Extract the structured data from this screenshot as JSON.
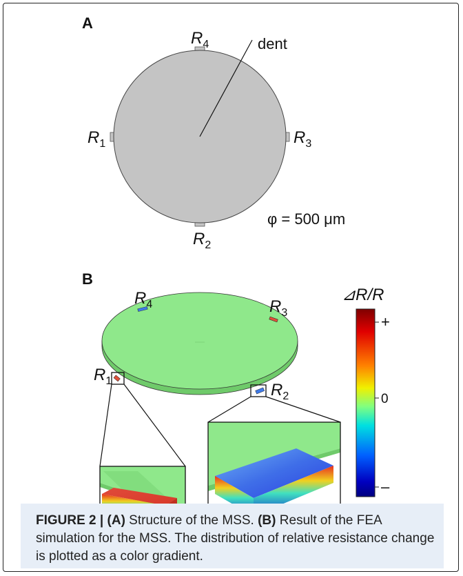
{
  "panels": {
    "a": {
      "letter": "A",
      "dent_label": "dent",
      "diameter": "φ = 500 μm",
      "resistors": [
        {
          "name": "R",
          "sub": "1"
        },
        {
          "name": "R",
          "sub": "2"
        },
        {
          "name": "R",
          "sub": "3"
        },
        {
          "name": "R",
          "sub": "4"
        }
      ]
    },
    "b": {
      "letter": "B",
      "resistors": [
        {
          "name": "R",
          "sub": "1"
        },
        {
          "name": "R",
          "sub": "2"
        },
        {
          "name": "R",
          "sub": "3"
        },
        {
          "name": "R",
          "sub": "4"
        }
      ],
      "colorbar": {
        "title": "⊿R/R",
        "plus": "+",
        "zero": "0",
        "minus": "–"
      }
    }
  },
  "colors": {
    "membrane_a": "#c4c4c4",
    "membrane_b": "#8fe88b",
    "caption_bg": "#e7eef7"
  },
  "caption": {
    "figure_label": "FIGURE 2 |",
    "a_marker": "(A)",
    "a_text": " Structure of the MSS. ",
    "b_marker": "(B)",
    "b_text": " Result of the FEA simulation for the MSS. The distribution of relative resistance change is plotted as a color gradient."
  }
}
